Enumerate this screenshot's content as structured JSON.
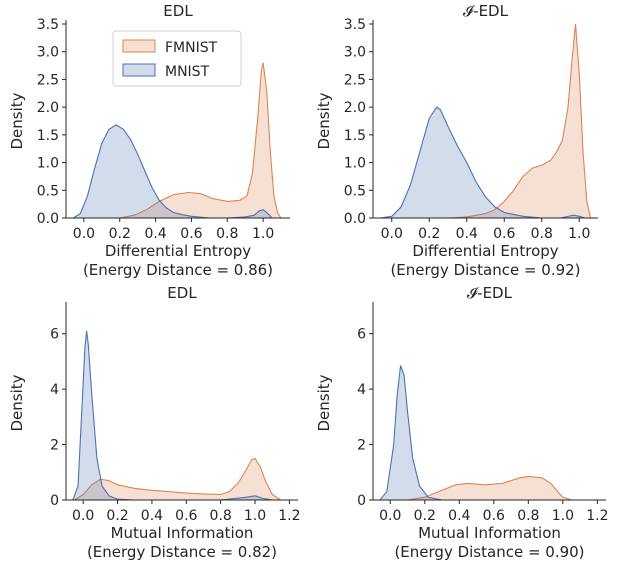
{
  "colors": {
    "FMNIST": {
      "line": "#dd8452",
      "fill": "#dd8452"
    },
    "MNIST": {
      "line": "#4c72b0",
      "fill": "#4c72b0"
    }
  },
  "chart_data": [
    {
      "type": "area",
      "title": "EDL",
      "xlabel": "Differential Entropy",
      "xlabel2": "(Energy Distance = 0.86)",
      "ylabel": "Density",
      "xlim": [
        -0.1,
        1.15
      ],
      "ylim": [
        0,
        3.5
      ],
      "xticks": [
        0.0,
        0.2,
        0.4,
        0.6,
        0.8,
        1.0
      ],
      "xtick_labels": [
        "0.0",
        "0.2",
        "0.4",
        "0.6",
        "0.8",
        "1.0"
      ],
      "yticks": [
        0.0,
        0.5,
        1.0,
        1.5,
        2.0,
        2.5,
        3.0,
        3.5
      ],
      "ytick_labels": [
        "0.0",
        "0.5",
        "1.0",
        "1.5",
        "2.0",
        "2.5",
        "3.0",
        "3.5"
      ],
      "legend": {
        "placement": "top-center",
        "entries": [
          "FMNIST",
          "MNIST"
        ]
      },
      "series": [
        {
          "name": "FMNIST",
          "x": [
            0.2,
            0.28,
            0.35,
            0.42,
            0.5,
            0.58,
            0.65,
            0.72,
            0.8,
            0.87,
            0.91,
            0.94,
            0.97,
            0.99,
            1.0,
            1.02,
            1.04,
            1.06,
            1.08,
            1.1
          ],
          "y": [
            0.0,
            0.05,
            0.15,
            0.3,
            0.42,
            0.46,
            0.44,
            0.35,
            0.3,
            0.32,
            0.4,
            0.8,
            1.8,
            2.65,
            2.8,
            2.3,
            1.2,
            0.4,
            0.1,
            0.0
          ]
        },
        {
          "name": "MNIST",
          "x": [
            -0.06,
            -0.02,
            0.02,
            0.06,
            0.1,
            0.14,
            0.18,
            0.22,
            0.26,
            0.3,
            0.34,
            0.38,
            0.42,
            0.46,
            0.5,
            0.55,
            0.6,
            0.7,
            0.8,
            0.9,
            0.95,
            0.98,
            1.0,
            1.02,
            1.05
          ],
          "y": [
            0.0,
            0.08,
            0.4,
            0.9,
            1.35,
            1.6,
            1.68,
            1.6,
            1.42,
            1.15,
            0.85,
            0.55,
            0.32,
            0.18,
            0.1,
            0.06,
            0.03,
            0.0,
            0.0,
            0.02,
            0.05,
            0.13,
            0.15,
            0.1,
            0.0
          ]
        }
      ]
    },
    {
      "type": "area",
      "title": "𝓘-EDL",
      "xlabel": "Differential Entropy",
      "xlabel2": "(Energy Distance = 0.92)",
      "ylabel": "Density",
      "xlim": [
        -0.1,
        1.1
      ],
      "ylim": [
        0,
        3.5
      ],
      "xticks": [
        0.0,
        0.2,
        0.4,
        0.6,
        0.8,
        1.0
      ],
      "xtick_labels": [
        "0.0",
        "0.2",
        "0.4",
        "0.6",
        "0.8",
        "1.0"
      ],
      "yticks": [
        0.0,
        0.5,
        1.0,
        1.5,
        2.0,
        2.5,
        3.0,
        3.5
      ],
      "ytick_labels": [
        "0.0",
        "0.5",
        "1.0",
        "1.5",
        "2.0",
        "2.5",
        "3.0",
        "3.5"
      ],
      "series": [
        {
          "name": "FMNIST",
          "x": [
            0.3,
            0.4,
            0.5,
            0.55,
            0.6,
            0.65,
            0.7,
            0.75,
            0.8,
            0.85,
            0.88,
            0.91,
            0.94,
            0.96,
            0.98,
            1.0,
            1.02,
            1.04,
            1.06
          ],
          "y": [
            0.0,
            0.02,
            0.08,
            0.15,
            0.3,
            0.5,
            0.75,
            0.9,
            0.95,
            1.05,
            1.2,
            1.4,
            2.0,
            2.8,
            3.5,
            2.6,
            1.2,
            0.3,
            0.0
          ]
        },
        {
          "name": "MNIST",
          "x": [
            -0.06,
            0.0,
            0.05,
            0.1,
            0.15,
            0.2,
            0.24,
            0.26,
            0.3,
            0.35,
            0.4,
            0.45,
            0.5,
            0.55,
            0.6,
            0.7,
            0.8,
            0.9,
            0.97,
            1.0,
            1.03
          ],
          "y": [
            0.0,
            0.03,
            0.2,
            0.6,
            1.2,
            1.8,
            2.0,
            1.95,
            1.65,
            1.3,
            1.0,
            0.65,
            0.38,
            0.2,
            0.1,
            0.03,
            0.0,
            0.0,
            0.05,
            0.03,
            0.0
          ]
        }
      ]
    },
    {
      "type": "area",
      "title": "EDL",
      "xlabel": "Mutual Information",
      "xlabel2": "(Energy Distance = 0.82)",
      "ylabel": "Density",
      "xlim": [
        -0.1,
        1.25
      ],
      "ylim": [
        0,
        7
      ],
      "xticks": [
        0.0,
        0.2,
        0.4,
        0.6,
        0.8,
        1.0,
        1.2
      ],
      "xtick_labels": [
        "0.0",
        "0.2",
        "0.4",
        "0.6",
        "0.8",
        "1.0",
        "1.2"
      ],
      "yticks": [
        0,
        2,
        4,
        6
      ],
      "ytick_labels": [
        "0",
        "2",
        "4",
        "6"
      ],
      "series": [
        {
          "name": "FMNIST",
          "x": [
            -0.05,
            0.0,
            0.05,
            0.1,
            0.15,
            0.2,
            0.3,
            0.4,
            0.5,
            0.6,
            0.7,
            0.8,
            0.85,
            0.9,
            0.95,
            0.98,
            1.0,
            1.03,
            1.06,
            1.1,
            1.15
          ],
          "y": [
            0.0,
            0.2,
            0.55,
            0.75,
            0.7,
            0.55,
            0.42,
            0.35,
            0.3,
            0.25,
            0.22,
            0.2,
            0.3,
            0.6,
            1.1,
            1.45,
            1.5,
            1.2,
            0.7,
            0.2,
            0.0
          ]
        },
        {
          "name": "MNIST",
          "x": [
            -0.06,
            -0.03,
            -0.01,
            0.01,
            0.02,
            0.03,
            0.05,
            0.08,
            0.11,
            0.15,
            0.2,
            0.3,
            0.5,
            0.8,
            0.95,
            1.0,
            1.05,
            1.1
          ],
          "y": [
            0.0,
            0.5,
            3.0,
            5.5,
            6.1,
            5.6,
            3.8,
            1.5,
            0.5,
            0.15,
            0.03,
            0.0,
            0.0,
            0.0,
            0.1,
            0.15,
            0.05,
            0.0
          ]
        }
      ]
    },
    {
      "type": "area",
      "title": "𝓘-EDL",
      "xlabel": "Mutual Information",
      "xlabel2": "(Energy Distance = 0.90)",
      "ylabel": "Density",
      "xlim": [
        -0.1,
        1.25
      ],
      "ylim": [
        0,
        7
      ],
      "xticks": [
        0.0,
        0.2,
        0.4,
        0.6,
        0.8,
        1.0,
        1.2
      ],
      "xtick_labels": [
        "0.0",
        "0.2",
        "0.4",
        "0.6",
        "0.8",
        "1.0",
        "1.2"
      ],
      "yticks": [
        0,
        2,
        4,
        6
      ],
      "ytick_labels": [
        "0",
        "2",
        "4",
        "6"
      ],
      "series": [
        {
          "name": "FMNIST",
          "x": [
            0.1,
            0.2,
            0.3,
            0.38,
            0.45,
            0.55,
            0.65,
            0.75,
            0.8,
            0.88,
            0.93,
            0.97,
            1.0,
            1.05
          ],
          "y": [
            0.0,
            0.1,
            0.35,
            0.55,
            0.6,
            0.55,
            0.6,
            0.8,
            0.85,
            0.8,
            0.6,
            0.3,
            0.1,
            0.0
          ]
        },
        {
          "name": "MNIST",
          "x": [
            -0.06,
            -0.02,
            0.02,
            0.04,
            0.06,
            0.08,
            0.1,
            0.13,
            0.17,
            0.22,
            0.3,
            0.5,
            1.0
          ],
          "y": [
            0.0,
            0.3,
            2.0,
            3.8,
            4.85,
            4.5,
            3.2,
            1.5,
            0.5,
            0.1,
            0.0,
            0.0,
            0.0
          ]
        }
      ]
    }
  ]
}
